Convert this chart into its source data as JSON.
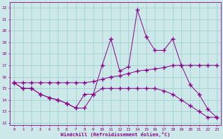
{
  "xlabel": "Windchill (Refroidissement éolien,°C)",
  "bg_color": "#cce8e8",
  "line_color": "#880088",
  "grid_color": "#99cccc",
  "xlim": [
    -0.5,
    23.5
  ],
  "ylim": [
    11.8,
    22.5
  ],
  "yticks": [
    12,
    13,
    14,
    15,
    16,
    17,
    18,
    19,
    20,
    21,
    22
  ],
  "xticks": [
    0,
    1,
    2,
    3,
    4,
    5,
    6,
    7,
    8,
    9,
    10,
    11,
    12,
    13,
    14,
    15,
    16,
    17,
    18,
    19,
    20,
    21,
    22,
    23
  ],
  "line1_x": [
    0,
    1,
    2,
    3,
    4,
    5,
    6,
    7,
    8,
    9,
    10,
    11,
    12,
    13,
    14,
    15,
    16,
    17,
    18,
    19,
    20,
    21,
    22,
    23
  ],
  "line1_y": [
    15.5,
    15.5,
    15.5,
    15.5,
    15.5,
    15.5,
    15.5,
    15.5,
    15.5,
    15.6,
    15.8,
    16.0,
    16.1,
    16.3,
    16.5,
    16.6,
    16.7,
    16.8,
    17.0,
    17.0,
    17.0,
    17.0,
    17.0,
    17.0
  ],
  "line2_x": [
    0,
    1,
    2,
    3,
    4,
    5,
    6,
    7,
    8,
    9,
    10,
    11,
    12,
    13,
    14,
    15,
    16,
    17,
    18,
    19,
    20,
    21,
    22,
    23
  ],
  "line2_y": [
    15.5,
    15.0,
    15.0,
    14.5,
    14.2,
    14.0,
    13.7,
    13.3,
    13.3,
    14.5,
    17.0,
    19.3,
    16.5,
    16.9,
    21.8,
    19.5,
    18.3,
    18.3,
    19.3,
    17.0,
    15.3,
    14.5,
    13.2,
    12.5
  ],
  "line3_x": [
    0,
    1,
    2,
    3,
    4,
    5,
    6,
    7,
    8,
    9,
    10,
    11,
    12,
    13,
    14,
    15,
    16,
    17,
    18,
    19,
    20,
    21,
    22,
    23
  ],
  "line3_y": [
    15.5,
    15.0,
    15.0,
    14.5,
    14.2,
    14.0,
    13.7,
    13.3,
    14.5,
    14.5,
    15.0,
    15.0,
    15.0,
    15.0,
    15.0,
    15.0,
    15.0,
    14.8,
    14.5,
    14.0,
    13.5,
    13.0,
    12.5,
    12.5
  ]
}
